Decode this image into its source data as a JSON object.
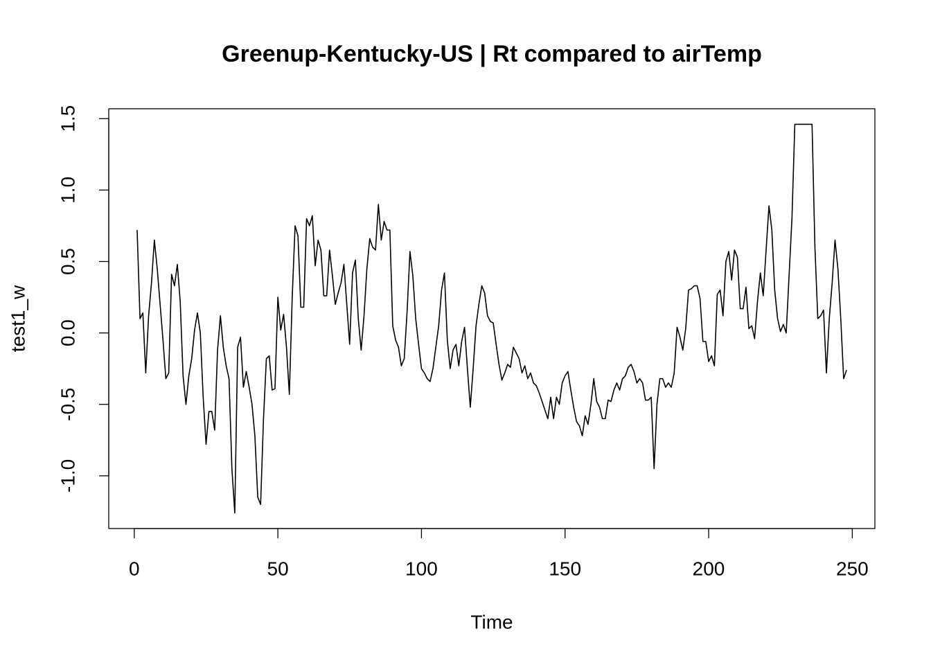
{
  "chart_data": {
    "type": "line",
    "title": "Greenup-Kentucky-US | Rt compared to airTemp",
    "x_label": "Time",
    "y_label": "test1_w",
    "x": [
      1,
      2,
      3,
      4,
      5,
      6,
      7,
      8,
      9,
      10,
      11,
      12,
      13,
      14,
      15,
      16,
      17,
      18,
      19,
      20,
      21,
      22,
      23,
      24,
      25,
      26,
      27,
      28,
      29,
      30,
      31,
      32,
      33,
      34,
      35,
      36,
      37,
      38,
      39,
      40,
      41,
      42,
      43,
      44,
      45,
      46,
      47,
      48,
      49,
      50,
      51,
      52,
      53,
      54,
      55,
      56,
      57,
      58,
      59,
      60,
      61,
      62,
      63,
      64,
      65,
      66,
      67,
      68,
      69,
      70,
      71,
      72,
      73,
      74,
      75,
      76,
      77,
      78,
      79,
      80,
      81,
      82,
      83,
      84,
      85,
      86,
      87,
      88,
      89,
      90,
      91,
      92,
      93,
      94,
      95,
      96,
      97,
      98,
      99,
      100,
      101,
      102,
      103,
      104,
      105,
      106,
      107,
      108,
      109,
      110,
      111,
      112,
      113,
      114,
      115,
      116,
      117,
      118,
      119,
      120,
      121,
      122,
      123,
      124,
      125,
      126,
      127,
      128,
      129,
      130,
      131,
      132,
      133,
      134,
      135,
      136,
      137,
      138,
      139,
      140,
      141,
      142,
      143,
      144,
      145,
      146,
      147,
      148,
      149,
      150,
      151,
      152,
      153,
      154,
      155,
      156,
      157,
      158,
      159,
      160,
      161,
      162,
      163,
      164,
      165,
      166,
      167,
      168,
      169,
      170,
      171,
      172,
      173,
      174,
      175,
      176,
      177,
      178,
      179,
      180,
      181,
      182,
      183,
      184,
      185,
      186,
      187,
      188,
      189,
      190,
      191,
      192,
      193,
      194,
      195,
      196,
      197,
      198,
      199,
      200,
      201,
      202,
      203,
      204,
      205,
      206,
      207,
      208,
      209,
      210,
      211,
      212,
      213,
      214,
      215,
      216,
      217,
      218,
      219,
      220,
      221,
      222,
      223,
      224,
      225,
      226,
      227,
      228,
      229,
      230,
      231,
      232,
      233,
      234,
      235,
      236,
      237,
      238,
      239,
      240,
      241,
      242,
      243,
      244,
      245,
      246,
      247,
      248
    ],
    "series": [
      {
        "name": "test1_w",
        "color": "#000000",
        "values": [
          0.72,
          0.1,
          0.14,
          -0.28,
          0.12,
          0.35,
          0.65,
          0.45,
          0.2,
          -0.05,
          -0.32,
          -0.28,
          0.41,
          0.33,
          0.48,
          0.22,
          -0.3,
          -0.5,
          -0.3,
          -0.18,
          0.02,
          0.14,
          0.0,
          -0.45,
          -0.78,
          -0.55,
          -0.55,
          -0.68,
          -0.12,
          0.12,
          -0.1,
          -0.23,
          -0.32,
          -0.95,
          -1.26,
          -0.1,
          -0.03,
          -0.38,
          -0.27,
          -0.38,
          -0.5,
          -0.72,
          -1.15,
          -1.2,
          -0.6,
          -0.18,
          -0.16,
          -0.4,
          -0.39,
          0.25,
          0.02,
          0.13,
          -0.1,
          -0.43,
          0.25,
          0.75,
          0.68,
          0.18,
          0.18,
          0.8,
          0.75,
          0.82,
          0.47,
          0.65,
          0.58,
          0.26,
          0.26,
          0.58,
          0.4,
          0.2,
          0.28,
          0.35,
          0.48,
          0.2,
          -0.08,
          0.42,
          0.51,
          0.1,
          -0.12,
          0.12,
          0.45,
          0.66,
          0.6,
          0.58,
          0.9,
          0.65,
          0.78,
          0.72,
          0.72,
          0.05,
          -0.05,
          -0.1,
          -0.23,
          -0.18,
          0.15,
          0.57,
          0.4,
          0.1,
          -0.08,
          -0.25,
          -0.28,
          -0.32,
          -0.34,
          -0.25,
          -0.1,
          0.05,
          0.3,
          0.42,
          -0.05,
          -0.25,
          -0.12,
          -0.08,
          -0.23,
          -0.06,
          0.04,
          -0.25,
          -0.52,
          -0.25,
          0.05,
          0.2,
          0.33,
          0.28,
          0.12,
          0.08,
          0.07,
          -0.08,
          -0.22,
          -0.33,
          -0.28,
          -0.22,
          -0.24,
          -0.1,
          -0.14,
          -0.18,
          -0.28,
          -0.23,
          -0.32,
          -0.28,
          -0.35,
          -0.37,
          -0.42,
          -0.48,
          -0.54,
          -0.6,
          -0.45,
          -0.6,
          -0.45,
          -0.5,
          -0.35,
          -0.3,
          -0.27,
          -0.4,
          -0.52,
          -0.62,
          -0.65,
          -0.72,
          -0.58,
          -0.64,
          -0.5,
          -0.32,
          -0.48,
          -0.52,
          -0.6,
          -0.6,
          -0.47,
          -0.48,
          -0.4,
          -0.35,
          -0.4,
          -0.32,
          -0.3,
          -0.24,
          -0.22,
          -0.27,
          -0.35,
          -0.32,
          -0.35,
          -0.47,
          -0.47,
          -0.45,
          -0.95,
          -0.5,
          -0.32,
          -0.32,
          -0.38,
          -0.35,
          -0.38,
          -0.28,
          0.04,
          -0.03,
          -0.12,
          0.03,
          0.3,
          0.31,
          0.33,
          0.33,
          0.24,
          -0.06,
          -0.06,
          -0.2,
          -0.16,
          -0.23,
          0.27,
          0.3,
          0.12,
          0.5,
          0.57,
          0.37,
          0.58,
          0.53,
          0.17,
          0.17,
          0.32,
          0.03,
          0.05,
          -0.04,
          0.22,
          0.42,
          0.26,
          0.58,
          0.89,
          0.72,
          0.3,
          0.1,
          0.01,
          0.06,
          0.0,
          0.4,
          0.8,
          1.46,
          1.46,
          1.46,
          1.46,
          1.46,
          1.46,
          1.46,
          0.6,
          0.1,
          0.12,
          0.16,
          -0.28,
          0.1,
          0.35,
          0.65,
          0.45,
          0.1,
          -0.32,
          -0.26
        ]
      }
    ],
    "xlim": [
      -8.88,
      257.88
    ],
    "ylim": [
      -1.369,
      1.569
    ],
    "xticks": [
      0,
      50,
      100,
      150,
      200,
      250
    ],
    "yticks": [
      {
        "value": -1,
        "label": "-1.0"
      },
      -0.5,
      {
        "value": 0,
        "label": "0.0"
      },
      0.5,
      {
        "value": 1,
        "label": "1.0"
      },
      1.5
    ],
    "grid": false
  }
}
